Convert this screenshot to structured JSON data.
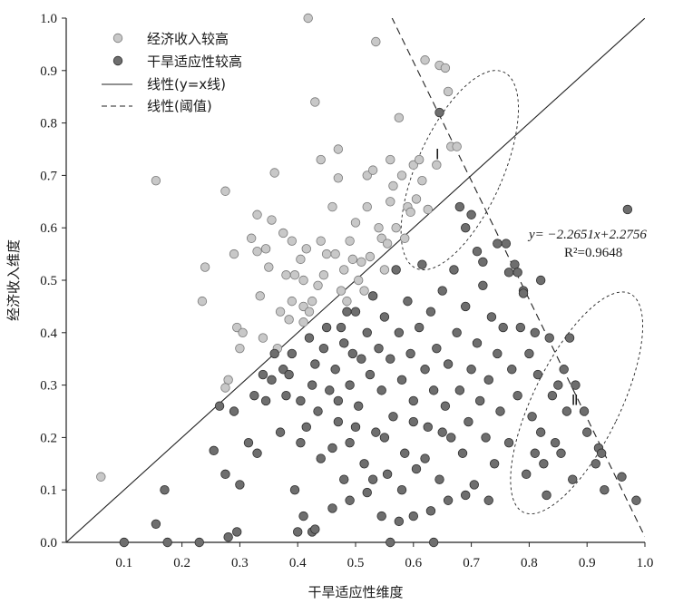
{
  "chart_data": {
    "type": "scatter",
    "title": "",
    "xlabel": "干旱适应性维度",
    "ylabel": "经济收入维度",
    "xlim": [
      0.0,
      1.0
    ],
    "ylim": [
      0.0,
      1.0
    ],
    "xticks": [
      "0.1",
      "0.2",
      "0.3",
      "0.4",
      "0.5",
      "0.6",
      "0.7",
      "0.8",
      "0.9",
      "1.0"
    ],
    "yticks": [
      "0.0",
      "0.1",
      "0.2",
      "0.3",
      "0.4",
      "0.5",
      "0.6",
      "0.7",
      "0.8",
      "0.9",
      "1.0"
    ],
    "grid": false,
    "legend_position": "top-left",
    "legend": [
      {
        "label": "经济收入较高",
        "kind": "marker",
        "color": "#c8c8c8"
      },
      {
        "label": "干旱适应性较高",
        "kind": "marker",
        "color": "#6e6e6e"
      },
      {
        "label": "线性(y=x线)",
        "kind": "solid-line"
      },
      {
        "label": "线性(阈值)",
        "kind": "dashed-line"
      }
    ],
    "lines": [
      {
        "name": "线性(y=x线)",
        "slope": 1.0,
        "intercept": 0.0,
        "style": "solid"
      },
      {
        "name": "线性(阈值)",
        "slope": -2.2651,
        "intercept": 2.2756,
        "style": "dashed"
      }
    ],
    "equation": "y= −2.2651x+2.2756",
    "r_squared": "R²=0.9648",
    "regions": [
      {
        "label": "Ⅰ",
        "center": [
          0.68,
          0.71
        ],
        "rx": 0.074,
        "ry": 0.205,
        "angle_deg": -66
      },
      {
        "label": "Ⅱ",
        "center": [
          0.882,
          0.266
        ],
        "rx": 0.075,
        "ry": 0.232,
        "angle_deg": -64
      }
    ],
    "series": [
      {
        "name": "经济收入较高",
        "color": "#c8c8c8",
        "points": [
          [
            0.06,
            0.125
          ],
          [
            0.155,
            0.69
          ],
          [
            0.24,
            0.525
          ],
          [
            0.235,
            0.46
          ],
          [
            0.275,
            0.67
          ],
          [
            0.28,
            0.31
          ],
          [
            0.275,
            0.295
          ],
          [
            0.29,
            0.55
          ],
          [
            0.295,
            0.41
          ],
          [
            0.3,
            0.37
          ],
          [
            0.305,
            0.4
          ],
          [
            0.32,
            0.58
          ],
          [
            0.33,
            0.625
          ],
          [
            0.33,
            0.555
          ],
          [
            0.335,
            0.47
          ],
          [
            0.34,
            0.39
          ],
          [
            0.345,
            0.56
          ],
          [
            0.35,
            0.525
          ],
          [
            0.355,
            0.615
          ],
          [
            0.36,
            0.705
          ],
          [
            0.365,
            0.37
          ],
          [
            0.37,
            0.44
          ],
          [
            0.375,
            0.59
          ],
          [
            0.38,
            0.51
          ],
          [
            0.385,
            0.425
          ],
          [
            0.39,
            0.46
          ],
          [
            0.39,
            0.575
          ],
          [
            0.395,
            0.51
          ],
          [
            0.405,
            0.54
          ],
          [
            0.41,
            0.5
          ],
          [
            0.41,
            0.45
          ],
          [
            0.41,
            0.42
          ],
          [
            0.415,
            0.56
          ],
          [
            0.418,
            1.0
          ],
          [
            0.42,
            0.44
          ],
          [
            0.425,
            0.46
          ],
          [
            0.43,
            0.84
          ],
          [
            0.435,
            0.49
          ],
          [
            0.44,
            0.73
          ],
          [
            0.44,
            0.575
          ],
          [
            0.445,
            0.51
          ],
          [
            0.45,
            0.55
          ],
          [
            0.46,
            0.64
          ],
          [
            0.465,
            0.55
          ],
          [
            0.47,
            0.695
          ],
          [
            0.47,
            0.75
          ],
          [
            0.475,
            0.48
          ],
          [
            0.48,
            0.52
          ],
          [
            0.485,
            0.46
          ],
          [
            0.49,
            0.575
          ],
          [
            0.495,
            0.54
          ],
          [
            0.5,
            0.61
          ],
          [
            0.505,
            0.5
          ],
          [
            0.51,
            0.535
          ],
          [
            0.515,
            0.48
          ],
          [
            0.52,
            0.64
          ],
          [
            0.52,
            0.7
          ],
          [
            0.525,
            0.545
          ],
          [
            0.53,
            0.71
          ],
          [
            0.535,
            0.955
          ],
          [
            0.54,
            0.6
          ],
          [
            0.545,
            0.58
          ],
          [
            0.55,
            0.52
          ],
          [
            0.555,
            0.57
          ],
          [
            0.56,
            0.65
          ],
          [
            0.56,
            0.73
          ],
          [
            0.565,
            0.68
          ],
          [
            0.57,
            0.6
          ],
          [
            0.575,
            0.81
          ],
          [
            0.58,
            0.7
          ],
          [
            0.585,
            0.58
          ],
          [
            0.59,
            0.64
          ],
          [
            0.595,
            0.63
          ],
          [
            0.6,
            0.72
          ],
          [
            0.605,
            0.655
          ],
          [
            0.61,
            0.73
          ],
          [
            0.615,
            0.69
          ],
          [
            0.62,
            0.92
          ],
          [
            0.625,
            0.635
          ],
          [
            0.64,
            0.72
          ],
          [
            0.645,
            0.91
          ],
          [
            0.655,
            0.905
          ],
          [
            0.66,
            0.86
          ],
          [
            0.665,
            0.755
          ],
          [
            0.675,
            0.755
          ]
        ]
      },
      {
        "name": "干旱适应性较高",
        "color": "#6e6e6e",
        "points": [
          [
            0.1,
            0.0
          ],
          [
            0.155,
            0.035
          ],
          [
            0.17,
            0.1
          ],
          [
            0.175,
            0.0
          ],
          [
            0.23,
            0.0
          ],
          [
            0.255,
            0.175
          ],
          [
            0.265,
            0.26
          ],
          [
            0.275,
            0.13
          ],
          [
            0.28,
            0.01
          ],
          [
            0.29,
            0.25
          ],
          [
            0.295,
            0.02
          ],
          [
            0.3,
            0.11
          ],
          [
            0.315,
            0.19
          ],
          [
            0.325,
            0.28
          ],
          [
            0.33,
            0.17
          ],
          [
            0.34,
            0.32
          ],
          [
            0.345,
            0.27
          ],
          [
            0.355,
            0.31
          ],
          [
            0.36,
            0.36
          ],
          [
            0.37,
            0.21
          ],
          [
            0.375,
            0.33
          ],
          [
            0.38,
            0.28
          ],
          [
            0.385,
            0.32
          ],
          [
            0.39,
            0.36
          ],
          [
            0.395,
            0.1
          ],
          [
            0.4,
            0.02
          ],
          [
            0.405,
            0.27
          ],
          [
            0.405,
            0.19
          ],
          [
            0.41,
            0.05
          ],
          [
            0.415,
            0.22
          ],
          [
            0.42,
            0.39
          ],
          [
            0.425,
            0.3
          ],
          [
            0.425,
            0.02
          ],
          [
            0.43,
            0.34
          ],
          [
            0.435,
            0.25
          ],
          [
            0.44,
            0.16
          ],
          [
            0.445,
            0.37
          ],
          [
            0.45,
            0.41
          ],
          [
            0.455,
            0.29
          ],
          [
            0.46,
            0.18
          ],
          [
            0.465,
            0.33
          ],
          [
            0.47,
            0.23
          ],
          [
            0.475,
            0.41
          ],
          [
            0.48,
            0.12
          ],
          [
            0.48,
            0.38
          ],
          [
            0.485,
            0.44
          ],
          [
            0.49,
            0.3
          ],
          [
            0.49,
            0.19
          ],
          [
            0.495,
            0.36
          ],
          [
            0.5,
            0.44
          ],
          [
            0.505,
            0.26
          ],
          [
            0.51,
            0.35
          ],
          [
            0.515,
            0.15
          ],
          [
            0.52,
            0.4
          ],
          [
            0.525,
            0.32
          ],
          [
            0.53,
            0.47
          ],
          [
            0.535,
            0.21
          ],
          [
            0.54,
            0.37
          ],
          [
            0.545,
            0.05
          ],
          [
            0.545,
            0.29
          ],
          [
            0.55,
            0.43
          ],
          [
            0.555,
            0.13
          ],
          [
            0.56,
            0.35
          ],
          [
            0.565,
            0.24
          ],
          [
            0.57,
            0.52
          ],
          [
            0.575,
            0.4
          ],
          [
            0.58,
            0.31
          ],
          [
            0.585,
            0.17
          ],
          [
            0.59,
            0.46
          ],
          [
            0.595,
            0.36
          ],
          [
            0.6,
            0.27
          ],
          [
            0.605,
            0.14
          ],
          [
            0.61,
            0.41
          ],
          [
            0.615,
            0.53
          ],
          [
            0.62,
            0.33
          ],
          [
            0.625,
            0.22
          ],
          [
            0.63,
            0.44
          ],
          [
            0.635,
            0.0
          ],
          [
            0.635,
            0.29
          ],
          [
            0.64,
            0.37
          ],
          [
            0.645,
            0.12
          ],
          [
            0.65,
            0.48
          ],
          [
            0.655,
            0.26
          ],
          [
            0.66,
            0.34
          ],
          [
            0.665,
            0.2
          ],
          [
            0.67,
            0.52
          ],
          [
            0.675,
            0.4
          ],
          [
            0.68,
            0.29
          ],
          [
            0.685,
            0.17
          ],
          [
            0.69,
            0.45
          ],
          [
            0.695,
            0.23
          ],
          [
            0.7,
            0.33
          ],
          [
            0.705,
            0.11
          ],
          [
            0.71,
            0.38
          ],
          [
            0.715,
            0.27
          ],
          [
            0.72,
            0.49
          ],
          [
            0.725,
            0.2
          ],
          [
            0.73,
            0.31
          ],
          [
            0.735,
            0.43
          ],
          [
            0.74,
            0.15
          ],
          [
            0.745,
            0.36
          ],
          [
            0.75,
            0.25
          ],
          [
            0.755,
            0.41
          ],
          [
            0.76,
            0.57
          ],
          [
            0.765,
            0.19
          ],
          [
            0.77,
            0.33
          ],
          [
            0.775,
            0.53
          ],
          [
            0.78,
            0.28
          ],
          [
            0.785,
            0.41
          ],
          [
            0.79,
            0.48
          ],
          [
            0.795,
            0.13
          ],
          [
            0.8,
            0.36
          ],
          [
            0.805,
            0.24
          ],
          [
            0.81,
            0.17
          ],
          [
            0.815,
            0.32
          ],
          [
            0.82,
            0.21
          ],
          [
            0.825,
            0.15
          ],
          [
            0.83,
            0.09
          ],
          [
            0.835,
            0.39
          ],
          [
            0.84,
            0.28
          ],
          [
            0.845,
            0.19
          ],
          [
            0.85,
            0.3
          ],
          [
            0.855,
            0.17
          ],
          [
            0.86,
            0.33
          ],
          [
            0.865,
            0.25
          ],
          [
            0.87,
            0.39
          ],
          [
            0.875,
            0.12
          ],
          [
            0.88,
            0.3
          ],
          [
            0.895,
            0.25
          ],
          [
            0.9,
            0.21
          ],
          [
            0.915,
            0.15
          ],
          [
            0.92,
            0.18
          ],
          [
            0.925,
            0.17
          ],
          [
            0.93,
            0.1
          ],
          [
            0.96,
            0.125
          ],
          [
            0.97,
            0.635
          ],
          [
            0.985,
            0.08
          ],
          [
            0.645,
            0.82
          ],
          [
            0.68,
            0.64
          ],
          [
            0.69,
            0.6
          ],
          [
            0.7,
            0.625
          ],
          [
            0.71,
            0.555
          ],
          [
            0.72,
            0.535
          ],
          [
            0.745,
            0.57
          ],
          [
            0.765,
            0.515
          ],
          [
            0.78,
            0.515
          ],
          [
            0.79,
            0.475
          ],
          [
            0.81,
            0.4
          ],
          [
            0.82,
            0.5
          ],
          [
            0.43,
            0.025
          ],
          [
            0.52,
            0.095
          ],
          [
            0.56,
            0.0
          ],
          [
            0.575,
            0.04
          ],
          [
            0.49,
            0.08
          ],
          [
            0.55,
            0.2
          ],
          [
            0.6,
            0.05
          ],
          [
            0.58,
            0.1
          ],
          [
            0.46,
            0.065
          ],
          [
            0.63,
            0.06
          ],
          [
            0.62,
            0.16
          ],
          [
            0.66,
            0.08
          ],
          [
            0.69,
            0.09
          ],
          [
            0.73,
            0.08
          ],
          [
            0.47,
            0.27
          ],
          [
            0.5,
            0.22
          ],
          [
            0.53,
            0.12
          ],
          [
            0.6,
            0.23
          ],
          [
            0.65,
            0.21
          ]
        ]
      }
    ]
  }
}
